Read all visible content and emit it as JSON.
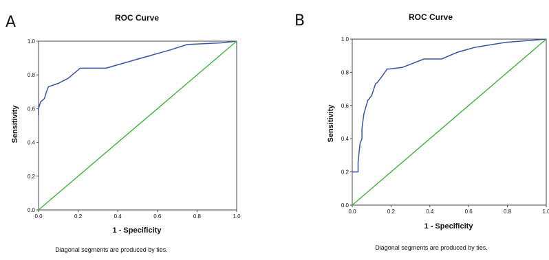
{
  "chart_data": [
    {
      "panel": "A",
      "type": "line",
      "title": "ROC Curve",
      "xlabel": "1 - Specificity",
      "ylabel": "Sensitivity",
      "xlim": [
        0,
        1
      ],
      "ylim": [
        0,
        1
      ],
      "x_ticks": [
        "0.0",
        "0.2",
        "0.4",
        "0.6",
        "0.8",
        "1.0"
      ],
      "y_ticks": [
        "0.0",
        "0.2",
        "0.4",
        "0.6",
        "0.8",
        "1.0"
      ],
      "grid": false,
      "legend": "none",
      "footnote": "Diagonal segments are produced by ties.",
      "series": [
        {
          "color": "#3953a4",
          "x": [
            0.0,
            0.0,
            0.01,
            0.02,
            0.03,
            0.04,
            0.05,
            0.1,
            0.15,
            0.21,
            0.34,
            0.55,
            0.67,
            0.75,
            0.92,
            1.0
          ],
          "y": [
            0.56,
            0.6,
            0.64,
            0.65,
            0.66,
            0.7,
            0.73,
            0.75,
            0.78,
            0.84,
            0.84,
            0.91,
            0.95,
            0.98,
            0.99,
            1.0
          ]
        },
        {
          "color": "#3cb53c",
          "x": [
            0,
            1
          ],
          "y": [
            0,
            1
          ]
        }
      ]
    },
    {
      "panel": "B",
      "type": "line",
      "title": "ROC Curve",
      "xlabel": "1 - Specificity",
      "ylabel": "Sensitivity",
      "xlim": [
        0,
        1
      ],
      "ylim": [
        0,
        1
      ],
      "x_ticks": [
        "0.0",
        "0.2",
        "0.4",
        "0.6",
        "0.8",
        "1.0"
      ],
      "y_ticks": [
        "0.0",
        "0.2",
        "0.4",
        "0.6",
        "0.8",
        "1.0"
      ],
      "grid": false,
      "legend": "none",
      "footnote": "Diagonal segments are produced by ties.",
      "series": [
        {
          "color": "#3953a4",
          "x": [
            0.0,
            0.03,
            0.03,
            0.04,
            0.05,
            0.05,
            0.06,
            0.07,
            0.08,
            0.1,
            0.12,
            0.13,
            0.15,
            0.18,
            0.19,
            0.26,
            0.37,
            0.46,
            0.54,
            0.63,
            0.79,
            1.0
          ],
          "y": [
            0.2,
            0.2,
            0.26,
            0.37,
            0.4,
            0.46,
            0.55,
            0.59,
            0.63,
            0.66,
            0.73,
            0.74,
            0.77,
            0.82,
            0.82,
            0.83,
            0.88,
            0.88,
            0.92,
            0.95,
            0.98,
            1.0
          ]
        },
        {
          "color": "#3cb53c",
          "x": [
            0,
            1
          ],
          "y": [
            0,
            1
          ]
        }
      ]
    }
  ]
}
